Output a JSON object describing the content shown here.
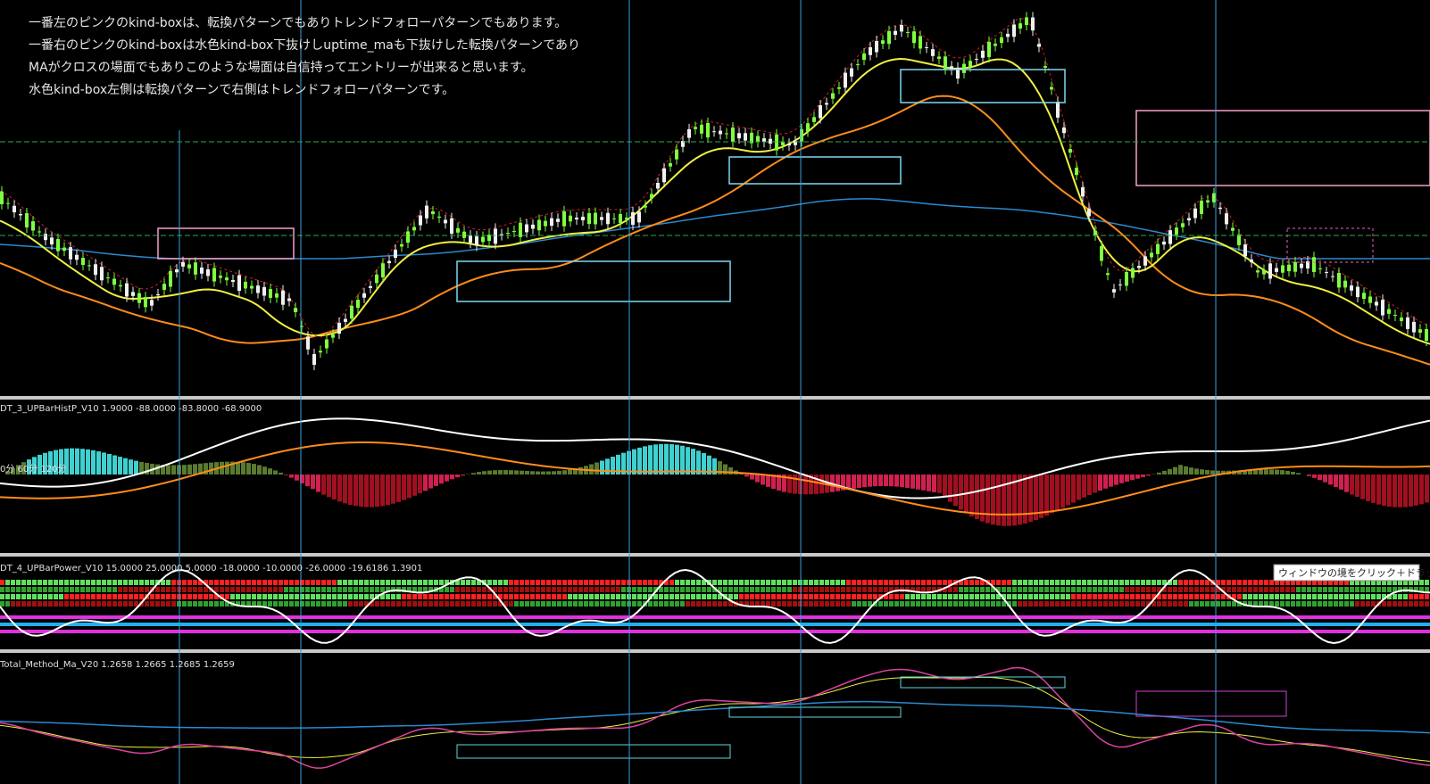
{
  "annotations": [
    "一番左のピンクのkind-boxは、転換パターンでもありトレンドフォローパターンでもあります。",
    "一番右のピンクのkind-boxは水色kind-box下抜けしuptime_maも下抜けした転換パターンであり",
    "MAがクロスの場面でもありこのような場面は自信持ってエントリーが出来ると思います。",
    "水色kind-box左側は転換パターンで右側はトレンドフォローパターンです。"
  ],
  "panels": [
    {
      "label": "DT_3_UPBarHistP_V10 1.9000 -88.0000 -83.8000 -68.9000",
      "sublabel": "0分  60分  120分"
    },
    {
      "label": "DT_4_UPBarPower_V10 15.0000 25.0000 5.0000 -18.0000 -10.0000 -26.0000 -19.6186 1.3901"
    },
    {
      "label": "Total_Method_Ma_V20 1.2658 1.2665 1.2685 1.2659"
    }
  ],
  "tooltip": "ウィンドウの境をクリック＋ドラッグ"
}
